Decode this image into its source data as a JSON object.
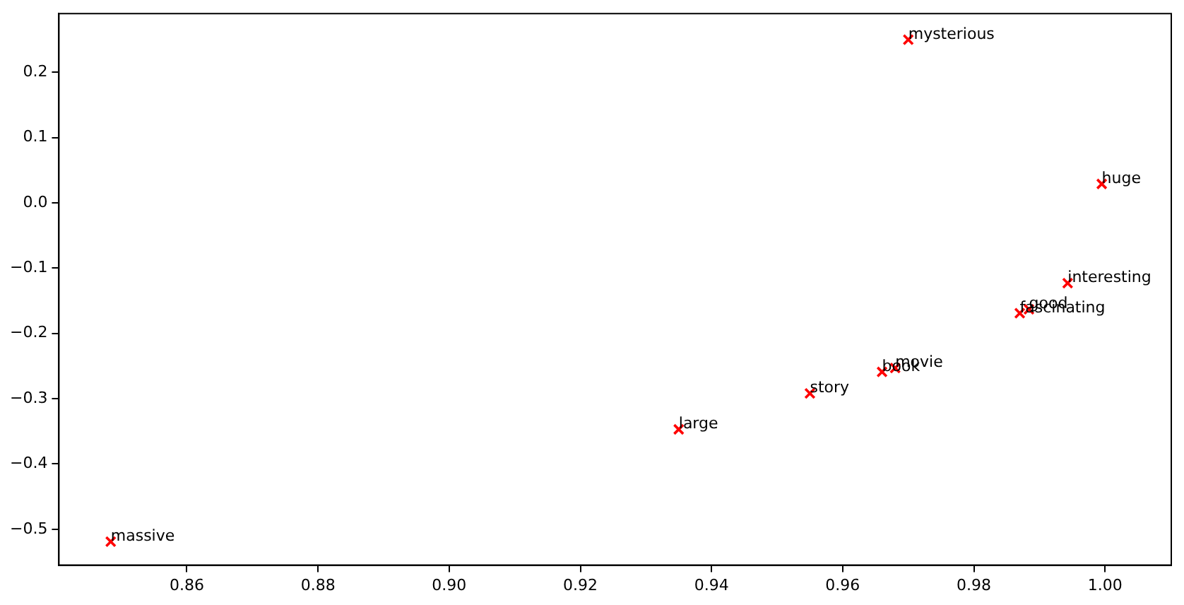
{
  "chart_data": {
    "type": "scatter",
    "x": [
      0.97,
      0.9995,
      0.9943,
      0.9884,
      0.987,
      0.966,
      0.968,
      0.955,
      0.935,
      0.8484
    ],
    "series": [
      {
        "color": "#ff0000",
        "values": [
          0.25,
          0.029,
          -0.123,
          -0.163,
          -0.169,
          -0.259,
          -0.253,
          -0.292,
          -0.347,
          -0.519
        ]
      }
    ],
    "marker": "cross",
    "annotations": [
      {
        "text": "mysterious",
        "x": 0.97,
        "y": 0.25
      },
      {
        "text": "huge",
        "x": 0.9995,
        "y": 0.029
      },
      {
        "text": "interesting",
        "x": 0.9943,
        "y": -0.123
      },
      {
        "text": "good",
        "x": 0.9884,
        "y": -0.163
      },
      {
        "text": "fascinating",
        "x": 0.987,
        "y": -0.169
      },
      {
        "text": "book",
        "x": 0.966,
        "y": -0.259
      },
      {
        "text": "movie",
        "x": 0.968,
        "y": -0.253
      },
      {
        "text": "story",
        "x": 0.955,
        "y": -0.292
      },
      {
        "text": "large",
        "x": 0.935,
        "y": -0.347
      },
      {
        "text": "massive",
        "x": 0.8484,
        "y": -0.519
      }
    ],
    "xlim": [
      0.8405,
      1.0101
    ],
    "xticks": [
      0.86,
      0.88,
      {
        "value": 0.9,
        "label": "0.90"
      },
      0.92,
      0.94,
      0.96,
      0.98,
      {
        "value": 1,
        "label": "1.00"
      }
    ],
    "ylim": [
      -0.555,
      0.29
    ],
    "yticks": [
      {
        "value": -0.5,
        "label": "−0.5"
      },
      {
        "value": -0.4,
        "label": "−0.4"
      },
      {
        "value": -0.3,
        "label": "−0.3"
      },
      {
        "value": -0.2,
        "label": "−0.2"
      },
      {
        "value": -0.1,
        "label": "−0.1"
      },
      {
        "value": 0,
        "label": "0.0"
      },
      0.1,
      0.2
    ],
    "grid": false,
    "legend": false
  }
}
